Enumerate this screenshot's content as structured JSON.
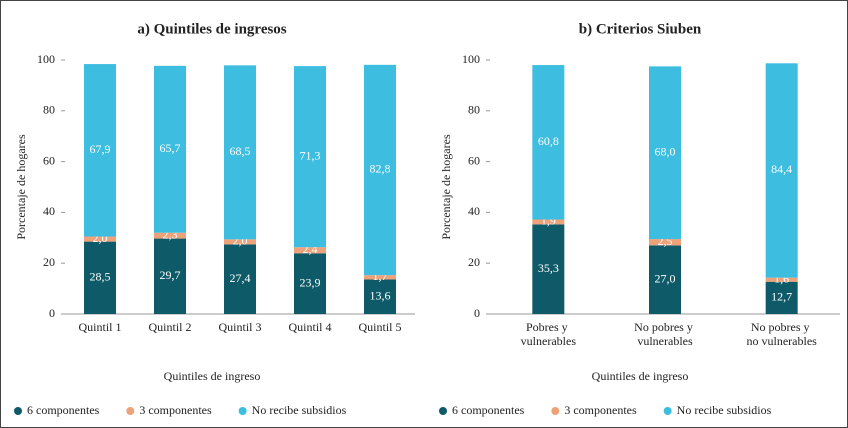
{
  "chart_data": [
    {
      "type": "stacked_bar",
      "title": "a) Quintiles de ingresos",
      "y_label": "Porcentaje de hogares",
      "x_label": "Quintiles de ingreso",
      "categories": [
        "Quintil 1",
        "Quintil 2",
        "Quintil 3",
        "Quintil 4",
        "Quintil 5"
      ],
      "ylim": [
        0,
        100
      ],
      "yticks": [
        0,
        20,
        40,
        60,
        80,
        100
      ],
      "series": [
        {
          "name": "6 componentes",
          "color": "#0e5a69",
          "values": [
            28.5,
            29.7,
            27.4,
            23.9,
            13.6
          ],
          "value_labels": [
            "28,5",
            "29,7",
            "27,4",
            "23,9",
            "13,6"
          ]
        },
        {
          "name": "3 componentes",
          "color": "#eea27a",
          "values": [
            2.0,
            2.3,
            2.0,
            2.4,
            1.7
          ],
          "value_labels": [
            "2,0",
            "2,3",
            "2,0",
            "2,4",
            "1,7"
          ]
        },
        {
          "name": "No recibe subsidios",
          "color": "#3dbde0",
          "values": [
            67.9,
            65.7,
            68.5,
            71.3,
            82.8
          ],
          "value_labels": [
            "67,9",
            "65,7",
            "68,5",
            "71,3",
            "82,8"
          ]
        }
      ]
    },
    {
      "type": "stacked_bar",
      "title": "b) Criterios Siuben",
      "y_label": "Porcentaje de hogares",
      "x_label": "Quintiles de ingreso",
      "categories": [
        "Pobres y vulnerables",
        "No pobres y vulnerables",
        "No pobres y no vulnerables"
      ],
      "ylim": [
        0,
        100
      ],
      "yticks": [
        0,
        20,
        40,
        60,
        80,
        100
      ],
      "series": [
        {
          "name": "6 componentes",
          "color": "#0e5a69",
          "values": [
            35.3,
            27.0,
            12.7
          ],
          "value_labels": [
            "35,3",
            "27,0",
            "12,7"
          ]
        },
        {
          "name": "3 componentes",
          "color": "#eea27a",
          "values": [
            1.9,
            2.5,
            1.6
          ],
          "value_labels": [
            "1,9",
            "2,5",
            "1,6"
          ]
        },
        {
          "name": "No recibe subsidios",
          "color": "#3dbde0",
          "values": [
            60.8,
            68.0,
            84.4
          ],
          "value_labels": [
            "60,8",
            "68,0",
            "84,4"
          ]
        }
      ]
    }
  ]
}
